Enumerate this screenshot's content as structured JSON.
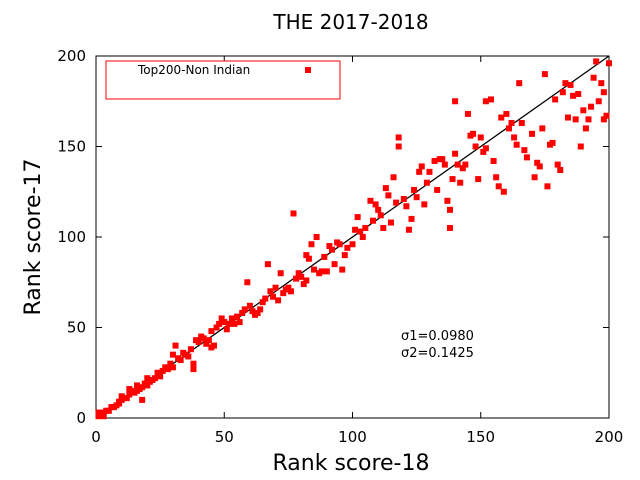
{
  "chart_data": {
    "type": "scatter",
    "title": "THE 2017-2018",
    "xlabel": "Rank score-18",
    "ylabel": "Rank score-17",
    "xlim": [
      0,
      200
    ],
    "ylim": [
      0,
      200
    ],
    "x_ticks": [
      "0",
      "50",
      "100",
      "150",
      "200"
    ],
    "y_ticks": [
      "0",
      "50",
      "100",
      "150",
      "200"
    ],
    "grid": false,
    "legend_position": "top-left",
    "reference_line": {
      "from": [
        0,
        0
      ],
      "to": [
        200,
        200
      ],
      "color": "#000000"
    },
    "annotations": [
      "σ1=0.0980",
      "σ2=0.1425"
    ],
    "series": [
      {
        "name": "Top200-Non Indian",
        "color": "#ff0000",
        "marker": "square",
        "points": [
          [
            1,
            1
          ],
          [
            1,
            3
          ],
          [
            2,
            2
          ],
          [
            3,
            1
          ],
          [
            3,
            3
          ],
          [
            4,
            4
          ],
          [
            5,
            4
          ],
          [
            6,
            6
          ],
          [
            7,
            6
          ],
          [
            8,
            7
          ],
          [
            9,
            8
          ],
          [
            9,
            9
          ],
          [
            10,
            10
          ],
          [
            10,
            12
          ],
          [
            11,
            11
          ],
          [
            12,
            11
          ],
          [
            13,
            13
          ],
          [
            13,
            16
          ],
          [
            14,
            15
          ],
          [
            15,
            14
          ],
          [
            16,
            15
          ],
          [
            16,
            18
          ],
          [
            17,
            16
          ],
          [
            18,
            17
          ],
          [
            18,
            10
          ],
          [
            19,
            19
          ],
          [
            20,
            18
          ],
          [
            20,
            22
          ],
          [
            21,
            20
          ],
          [
            22,
            21
          ],
          [
            23,
            22
          ],
          [
            24,
            25
          ],
          [
            25,
            23
          ],
          [
            26,
            26
          ],
          [
            27,
            28
          ],
          [
            28,
            27
          ],
          [
            29,
            30
          ],
          [
            30,
            28
          ],
          [
            30,
            35
          ],
          [
            31,
            40
          ],
          [
            32,
            33
          ],
          [
            33,
            32
          ],
          [
            34,
            36
          ],
          [
            35,
            35
          ],
          [
            36,
            34
          ],
          [
            37,
            38
          ],
          [
            38,
            27
          ],
          [
            38,
            30
          ],
          [
            39,
            43
          ],
          [
            40,
            42
          ],
          [
            41,
            45
          ],
          [
            42,
            44
          ],
          [
            43,
            41
          ],
          [
            44,
            43
          ],
          [
            45,
            39
          ],
          [
            45,
            48
          ],
          [
            46,
            40
          ],
          [
            47,
            50
          ],
          [
            48,
            52
          ],
          [
            49,
            55
          ],
          [
            50,
            53
          ],
          [
            51,
            49
          ],
          [
            52,
            52
          ],
          [
            53,
            55
          ],
          [
            54,
            52
          ],
          [
            55,
            56
          ],
          [
            56,
            53
          ],
          [
            57,
            58
          ],
          [
            58,
            60
          ],
          [
            59,
            75
          ],
          [
            60,
            62
          ],
          [
            61,
            59
          ],
          [
            62,
            57
          ],
          [
            63,
            58
          ],
          [
            64,
            60
          ],
          [
            65,
            64
          ],
          [
            66,
            66
          ],
          [
            67,
            85
          ],
          [
            68,
            70
          ],
          [
            69,
            67
          ],
          [
            70,
            72
          ],
          [
            71,
            65
          ],
          [
            72,
            80
          ],
          [
            73,
            69
          ],
          [
            74,
            71
          ],
          [
            75,
            72
          ],
          [
            76,
            70
          ],
          [
            77,
            113
          ],
          [
            78,
            77
          ],
          [
            79,
            80
          ],
          [
            80,
            78
          ],
          [
            81,
            74
          ],
          [
            82,
            76
          ],
          [
            82,
            90
          ],
          [
            83,
            88
          ],
          [
            84,
            96
          ],
          [
            85,
            82
          ],
          [
            86,
            100
          ],
          [
            87,
            80
          ],
          [
            88,
            81
          ],
          [
            89,
            89
          ],
          [
            90,
            81
          ],
          [
            91,
            95
          ],
          [
            92,
            93
          ],
          [
            93,
            85
          ],
          [
            94,
            97
          ],
          [
            95,
            96
          ],
          [
            96,
            82
          ],
          [
            97,
            90
          ],
          [
            98,
            94
          ],
          [
            100,
            96
          ],
          [
            101,
            104
          ],
          [
            102,
            111
          ],
          [
            103,
            103
          ],
          [
            104,
            100
          ],
          [
            105,
            105
          ],
          [
            107,
            120
          ],
          [
            108,
            109
          ],
          [
            109,
            118
          ],
          [
            110,
            115
          ],
          [
            111,
            112
          ],
          [
            112,
            105
          ],
          [
            113,
            127
          ],
          [
            114,
            123
          ],
          [
            115,
            108
          ],
          [
            116,
            133
          ],
          [
            117,
            119
          ],
          [
            118,
            155
          ],
          [
            118,
            150
          ],
          [
            120,
            121
          ],
          [
            121,
            117
          ],
          [
            122,
            104
          ],
          [
            123,
            110
          ],
          [
            124,
            126
          ],
          [
            125,
            122
          ],
          [
            126,
            136
          ],
          [
            127,
            139
          ],
          [
            128,
            118
          ],
          [
            129,
            130
          ],
          [
            130,
            136
          ],
          [
            132,
            142
          ],
          [
            133,
            126
          ],
          [
            134,
            143
          ],
          [
            135,
            143
          ],
          [
            136,
            140
          ],
          [
            137,
            120
          ],
          [
            138,
            105
          ],
          [
            138,
            115
          ],
          [
            139,
            132
          ],
          [
            140,
            175
          ],
          [
            140,
            146
          ],
          [
            141,
            140
          ],
          [
            142,
            130
          ],
          [
            143,
            138
          ],
          [
            144,
            140
          ],
          [
            145,
            168
          ],
          [
            146,
            156
          ],
          [
            147,
            157
          ],
          [
            148,
            150
          ],
          [
            149,
            132
          ],
          [
            150,
            155
          ],
          [
            151,
            147
          ],
          [
            152,
            175
          ],
          [
            152,
            149
          ],
          [
            154,
            176
          ],
          [
            155,
            142
          ],
          [
            156,
            133
          ],
          [
            157,
            128
          ],
          [
            158,
            166
          ],
          [
            159,
            125
          ],
          [
            160,
            168
          ],
          [
            161,
            160
          ],
          [
            162,
            163
          ],
          [
            163,
            155
          ],
          [
            164,
            151
          ],
          [
            165,
            185
          ],
          [
            166,
            163
          ],
          [
            167,
            148
          ],
          [
            168,
            144
          ],
          [
            170,
            157
          ],
          [
            171,
            133
          ],
          [
            172,
            141
          ],
          [
            173,
            139
          ],
          [
            174,
            160
          ],
          [
            175,
            190
          ],
          [
            176,
            128
          ],
          [
            177,
            151
          ],
          [
            178,
            152
          ],
          [
            179,
            176
          ],
          [
            180,
            140
          ],
          [
            181,
            137
          ],
          [
            182,
            180
          ],
          [
            183,
            185
          ],
          [
            184,
            166
          ],
          [
            185,
            184
          ],
          [
            186,
            178
          ],
          [
            187,
            165
          ],
          [
            188,
            179
          ],
          [
            189,
            150
          ],
          [
            190,
            170
          ],
          [
            191,
            160
          ],
          [
            192,
            165
          ],
          [
            193,
            172
          ],
          [
            194,
            188
          ],
          [
            195,
            197
          ],
          [
            196,
            175
          ],
          [
            197,
            185
          ],
          [
            198,
            180
          ],
          [
            198,
            165
          ],
          [
            199,
            167
          ],
          [
            200,
            196
          ]
        ]
      }
    ]
  }
}
